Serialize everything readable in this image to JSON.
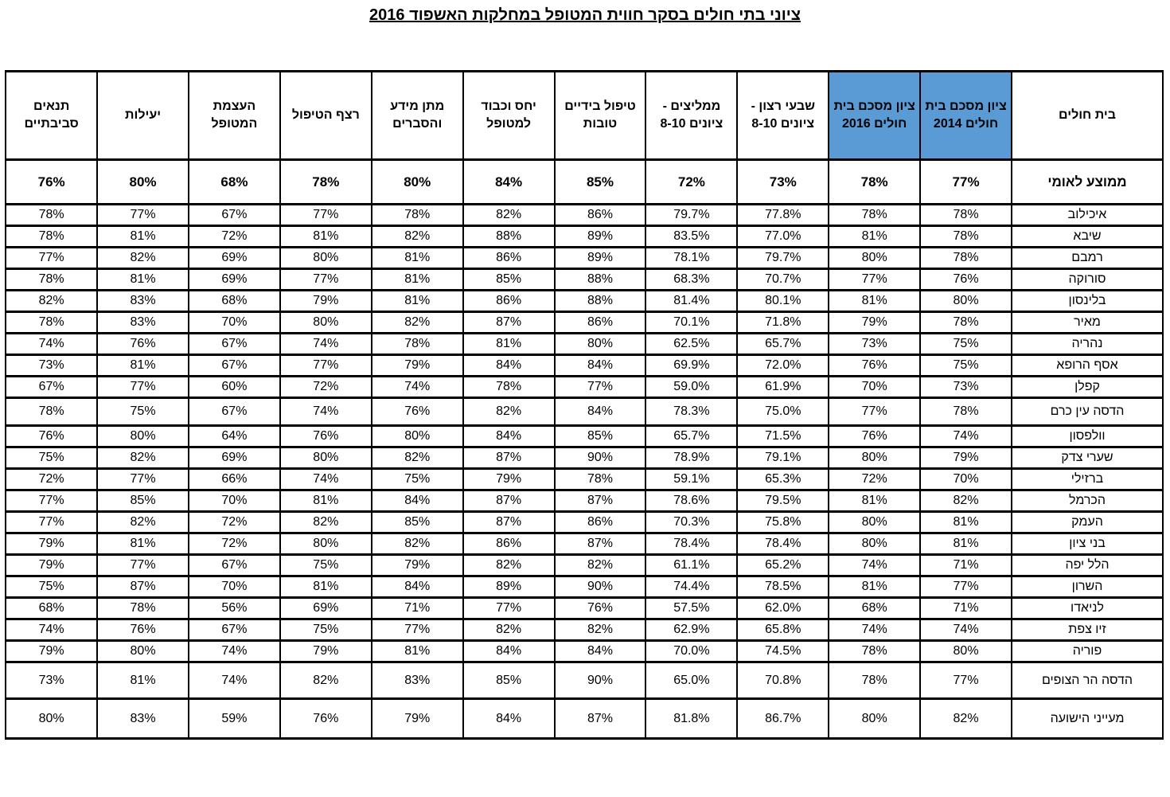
{
  "title": "ציוני בתי חולים בסקר חווית המטופל במחלקות האשפוד 2016",
  "colors": {
    "header_highlight": "#5B9BD5",
    "border": "#000000",
    "text": "#000000"
  },
  "table": {
    "columns": [
      {
        "label": "בית חולים",
        "highlight": false
      },
      {
        "label": "ציון מסכם בית חולים 2014",
        "highlight": true
      },
      {
        "label": "ציון מסכם בית חולים 2016",
        "highlight": true
      },
      {
        "label": "שבעי רצון - ציונים 8-10",
        "highlight": false
      },
      {
        "label": "ממליצים - ציונים 8-10",
        "highlight": false
      },
      {
        "label": "טיפול בידיים טובות",
        "highlight": false
      },
      {
        "label": "יחס וכבוד למטופל",
        "highlight": false
      },
      {
        "label": "מתן מידע והסברים",
        "highlight": false
      },
      {
        "label": "רצף הטיפול",
        "highlight": false
      },
      {
        "label": "העצמת המטופל",
        "highlight": false
      },
      {
        "label": "יעילות",
        "highlight": false
      },
      {
        "label": "תנאים סביבתיים",
        "highlight": false
      }
    ],
    "average_row": {
      "name": "ממוצע לאומי",
      "values": [
        "77%",
        "78%",
        "73%",
        "72%",
        "85%",
        "84%",
        "80%",
        "78%",
        "68%",
        "80%",
        "76%"
      ]
    },
    "rows": [
      {
        "name": "איכילוב",
        "size": "",
        "values": [
          "78%",
          "78%",
          "77.8%",
          "79.7%",
          "86%",
          "82%",
          "78%",
          "77%",
          "67%",
          "77%",
          "78%"
        ]
      },
      {
        "name": "שיבא",
        "size": "",
        "values": [
          "78%",
          "81%",
          "77.0%",
          "83.5%",
          "89%",
          "88%",
          "82%",
          "81%",
          "72%",
          "81%",
          "78%"
        ]
      },
      {
        "name": "רמבם",
        "size": "",
        "values": [
          "78%",
          "80%",
          "79.7%",
          "78.1%",
          "89%",
          "86%",
          "81%",
          "80%",
          "69%",
          "82%",
          "77%"
        ]
      },
      {
        "name": "סורוקה",
        "size": "",
        "values": [
          "76%",
          "77%",
          "70.7%",
          "68.3%",
          "88%",
          "85%",
          "81%",
          "77%",
          "69%",
          "81%",
          "78%"
        ]
      },
      {
        "name": "בלינסון",
        "size": "",
        "values": [
          "80%",
          "81%",
          "80.1%",
          "81.4%",
          "88%",
          "86%",
          "81%",
          "79%",
          "68%",
          "83%",
          "82%"
        ]
      },
      {
        "name": "מאיר",
        "size": "",
        "values": [
          "78%",
          "79%",
          "71.8%",
          "70.1%",
          "86%",
          "87%",
          "82%",
          "80%",
          "70%",
          "83%",
          "78%"
        ]
      },
      {
        "name": "נהריה",
        "size": "",
        "values": [
          "75%",
          "73%",
          "65.7%",
          "62.5%",
          "80%",
          "81%",
          "78%",
          "74%",
          "67%",
          "76%",
          "74%"
        ]
      },
      {
        "name": "אסף הרופא",
        "size": "",
        "values": [
          "75%",
          "76%",
          "72.0%",
          "69.9%",
          "84%",
          "84%",
          "79%",
          "77%",
          "67%",
          "81%",
          "73%"
        ]
      },
      {
        "name": "קפלן",
        "size": "",
        "values": [
          "73%",
          "70%",
          "61.9%",
          "59.0%",
          "77%",
          "78%",
          "74%",
          "72%",
          "60%",
          "77%",
          "67%"
        ]
      },
      {
        "name": "הדסה עין כרם",
        "size": "m",
        "values": [
          "78%",
          "77%",
          "75.0%",
          "78.3%",
          "84%",
          "82%",
          "76%",
          "74%",
          "67%",
          "75%",
          "78%"
        ]
      },
      {
        "name": "וולפסון",
        "size": "",
        "values": [
          "74%",
          "76%",
          "71.5%",
          "65.7%",
          "85%",
          "84%",
          "80%",
          "76%",
          "64%",
          "80%",
          "76%"
        ]
      },
      {
        "name": "שערי צדק",
        "size": "",
        "values": [
          "79%",
          "80%",
          "79.1%",
          "78.9%",
          "90%",
          "87%",
          "82%",
          "80%",
          "69%",
          "82%",
          "75%"
        ]
      },
      {
        "name": "ברזילי",
        "size": "",
        "values": [
          "70%",
          "72%",
          "65.3%",
          "59.1%",
          "78%",
          "79%",
          "75%",
          "74%",
          "66%",
          "77%",
          "72%"
        ]
      },
      {
        "name": "הכרמל",
        "size": "",
        "values": [
          "82%",
          "81%",
          "79.5%",
          "78.6%",
          "87%",
          "87%",
          "84%",
          "81%",
          "70%",
          "85%",
          "77%"
        ]
      },
      {
        "name": "העמק",
        "size": "",
        "values": [
          "81%",
          "80%",
          "75.8%",
          "70.3%",
          "86%",
          "87%",
          "85%",
          "82%",
          "72%",
          "82%",
          "77%"
        ]
      },
      {
        "name": "בני ציון",
        "size": "",
        "values": [
          "81%",
          "80%",
          "78.4%",
          "78.4%",
          "87%",
          "86%",
          "82%",
          "80%",
          "72%",
          "81%",
          "79%"
        ]
      },
      {
        "name": "הלל יפה",
        "size": "",
        "values": [
          "71%",
          "74%",
          "65.2%",
          "61.1%",
          "82%",
          "82%",
          "79%",
          "75%",
          "67%",
          "77%",
          "79%"
        ]
      },
      {
        "name": "השרון",
        "size": "",
        "values": [
          "77%",
          "81%",
          "78.5%",
          "74.4%",
          "90%",
          "89%",
          "84%",
          "81%",
          "70%",
          "87%",
          "75%"
        ]
      },
      {
        "name": "לניאדו",
        "size": "",
        "values": [
          "71%",
          "68%",
          "62.0%",
          "57.5%",
          "76%",
          "77%",
          "71%",
          "69%",
          "56%",
          "78%",
          "68%"
        ]
      },
      {
        "name": "זיו צפת",
        "size": "",
        "values": [
          "74%",
          "74%",
          "65.8%",
          "62.9%",
          "82%",
          "82%",
          "77%",
          "75%",
          "67%",
          "76%",
          "74%"
        ]
      },
      {
        "name": "פוריה",
        "size": "",
        "values": [
          "80%",
          "78%",
          "74.5%",
          "70.0%",
          "84%",
          "84%",
          "81%",
          "79%",
          "74%",
          "80%",
          "79%"
        ]
      },
      {
        "name": "הדסה הר הצופים",
        "size": "l",
        "values": [
          "77%",
          "78%",
          "70.8%",
          "65.0%",
          "90%",
          "85%",
          "83%",
          "82%",
          "74%",
          "81%",
          "73%"
        ]
      },
      {
        "name": "מעייני הישועה",
        "size": "xl",
        "values": [
          "82%",
          "80%",
          "86.7%",
          "81.8%",
          "87%",
          "84%",
          "79%",
          "76%",
          "59%",
          "83%",
          "80%"
        ]
      }
    ]
  }
}
